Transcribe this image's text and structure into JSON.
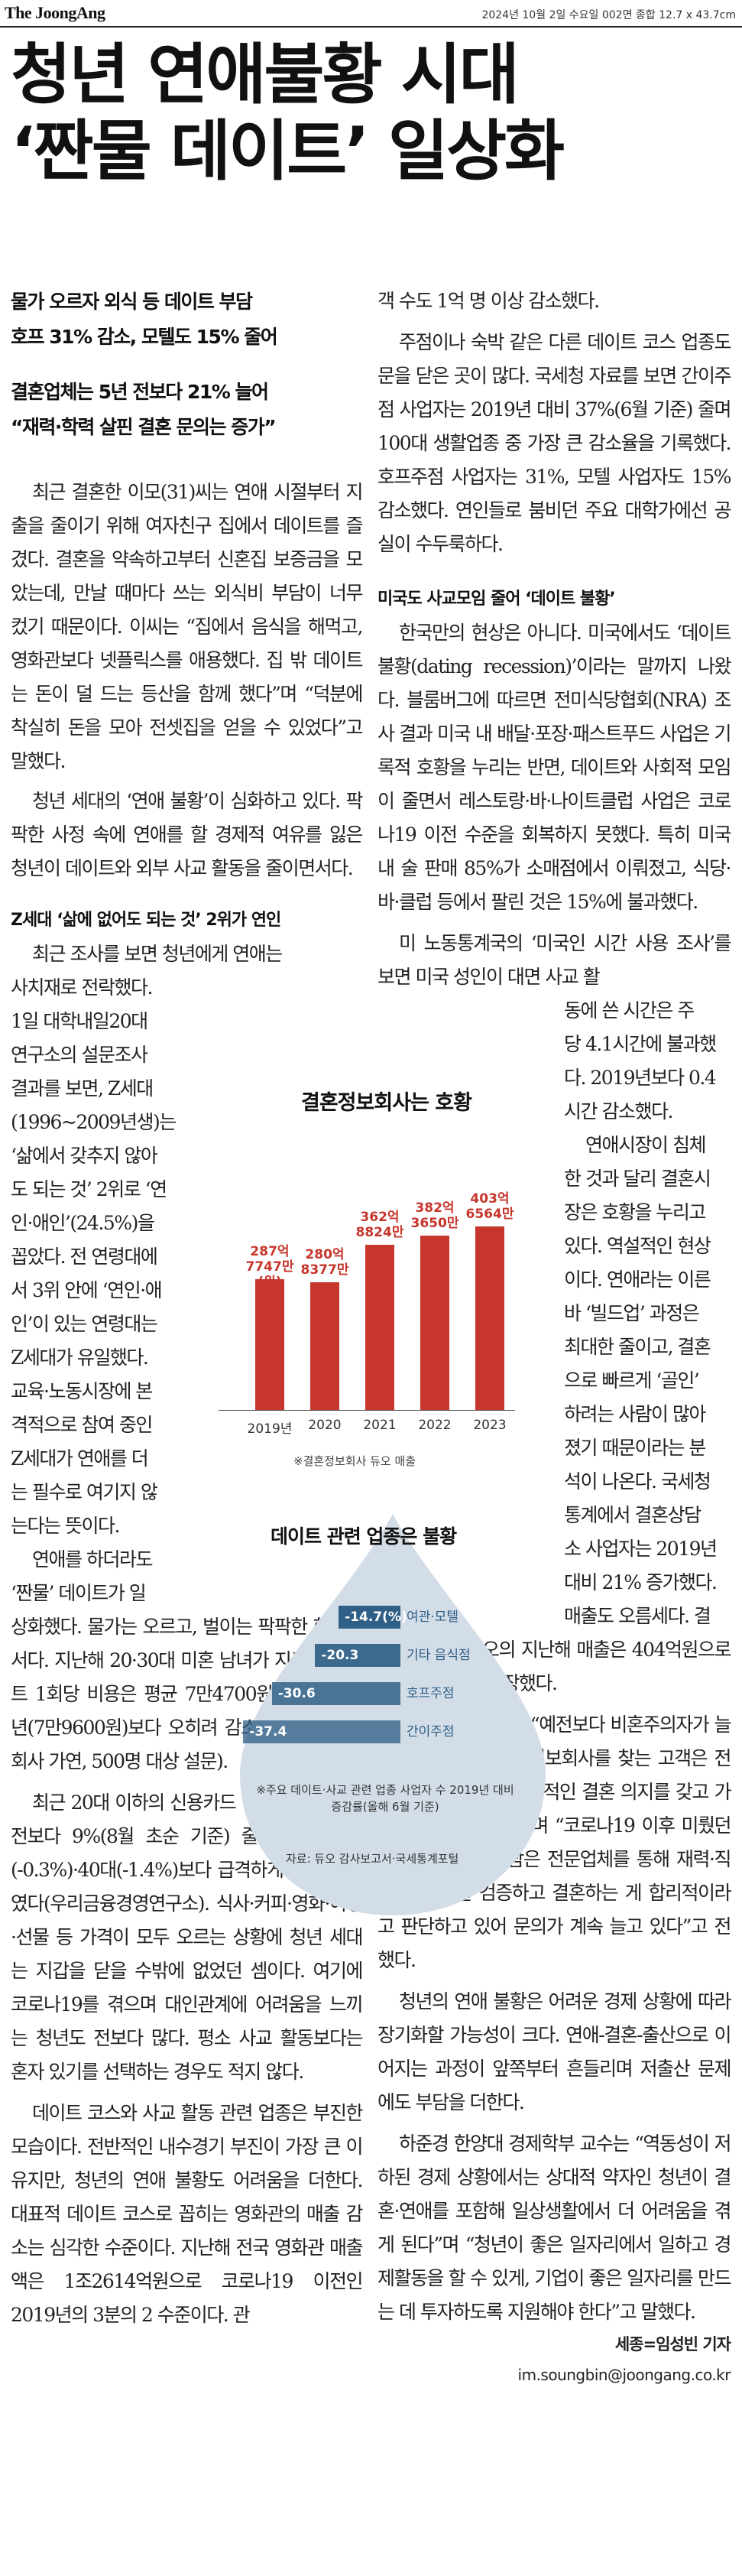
{
  "masthead": {
    "logo": "The JoongAng",
    "dateline": "2024년 10월 2일 수요일 002면 종합 12.7 x 43.7cm"
  },
  "headline": {
    "line1": "청년 연애불황 시대",
    "line2": "‘짠물 데이트’ 일상화"
  },
  "subheads": {
    "line1": "물가 오르자 외식 등 데이트 부담",
    "line2": "호프 31% 감소, 모텔도 15% 줄어",
    "line3": "결혼업체는 5년 전보다 21% 늘어",
    "line4": "“재력·학력 살핀 결혼 문의는 증가”"
  },
  "left_paragraphs": [
    "최근 결혼한 이모(31)씨는 연애 시절부터 지출을 줄이기 위해 여자친구 집에서 데이트를 즐겼다. 결혼을 약속하고부터 신혼집 보증금을 모았는데, 만날 때마다 쓰는 외식비 부담이 너무 컸기 때문이다. 이씨는 “집에서 음식을 해먹고, 영화관보다 넷플릭스를 애용했다. 집 밖 데이트는 돈이 덜 드는 등산을 함께 했다”며 “덕분에 착실히 돈을 모아 전셋집을 얻을 수 있었다”고 말했다.",
    "청년 세대의 ‘연애 불황’이 심화하고 있다. 팍팍한 사정 속에 연애를 할 경제적 여유를 잃은 청년이 데이트와 외부 사교 활동을 줄이면서다."
  ],
  "left_section_head": "Z세대 ‘삶에 없어도 되는 것’ 2위가 연인",
  "left_narrow_first_line": "최근 조사를 보면 청년에게 연애는",
  "left_narrow_lines": [
    "사치재로 전락했다.",
    "1일 대학내일20대",
    "연구소의 설문조사",
    "결과를 보면, Z세대",
    "(1996~2009년생)는",
    "‘삶에서 갖추지 않아",
    "도 되는 것’ 2위로 ‘연",
    "인·애인’(24.5%)을",
    "꼽았다. 전 연령대에",
    "서 3위 안에 ‘연인·애",
    "인’이 있는 연령대는",
    "Z세대가 유일했다.",
    "교육·노동시장에 본",
    "격적으로 참여 중인",
    "Z세대가 연애를 더",
    "는 필수로 여기지 않",
    "는다는 뜻이다.",
    "연애를 하더라도",
    "‘짠물’ 데이트가 일"
  ],
  "left_paragraphs_2": [
    "상화했다. 물가는 오르고, 벌이는 팍팍한 현실에서다. 지난해 20·30대 미혼 남녀가 지출한 데이트 1회당 비용은 평균 7만4700원으로, 2022년(7만9600원)보다 오히려 감소했다(결혼정보회사 가연, 500명 대상 설문).",
    "최근 20대 이하의 신용카드 이용 금액은 1년 전보다 9%(8월 초순 기준) 줄었으며, 30대(-0.3%)·40대(-1.4%)보다 급격하게 지출을 줄였다(우리금융경영연구소). 식사·커피·영화·여행·선물 등 가격이 모두 오르는 상황에 청년 세대는 지갑을 닫을 수밖에 없었던 셈이다. 여기에 코로나19를 겪으며 대인관계에 어려움을 느끼는 청년도 전보다 많다. 평소 사교 활동보다는 혼자 있기를 선택하는 경우도 적지 않다.",
    "데이트 코스와 사교 활동 관련 업종은 부진한 모습이다. 전반적인 내수경기 부진이 가장 큰 이유지만, 청년의 연애 불황도 어려움을 더한다. 대표적 데이트 코스로 꼽히는 영화관의 매출 감소는 심각한 수준이다. 지난해 전국 영화관 매출액은 1조2614억원으로 코로나19 이전인 2019년의 3분의 2 수준이다. 관"
  ],
  "right_paragraphs_1": [
    "객 수도 1억 명 이상 감소했다.",
    "주점이나 숙박 같은 다른 데이트 코스 업종도 문을 닫은 곳이 많다. 국세청 자료를 보면 간이주점 사업자는 2019년 대비 37%(6월 기준) 줄며 100대 생활업종 중 가장 큰 감소율을 기록했다. 호프주점 사업자는 31%, 모텔 사업자도 15% 감소했다. 연인들로 붐비던 주요 대학가에선 공실이 수두룩하다."
  ],
  "right_section_head": "미국도 사교모임 줄어 ‘데이트 불황’",
  "right_paragraphs_2": [
    "한국만의 현상은 아니다. 미국에서도 ‘데이트 불황(dating recession)’이라는 말까지 나왔다. 블룸버그에 따르면 전미식당협회(NRA) 조사 결과 미국 내 배달·포장·패스트푸드 사업은 기록적 호황을 누리는 반면, 데이트와 사회적 모임이 줄면서 레스토랑·바·나이트클럽 사업은 코로나19 이전 수준을 회복하지 못했다. 특히 미국 내 술 판매 85%가 소매점에서 이뤄졌고, 식당·바·클럽 등에서 팔린 것은 15%에 불과했다.",
    "미 노동통계국의 ‘미국인 시간 사용 조사’를 보면 미국 성인이 대면 사교 활"
  ],
  "right_narrow_lines": [
    "동에 쓴 시간은 주",
    "당 4.1시간에 불과했",
    "다. 2019년보다 0.4",
    "시간 감소했다.",
    "연애시장이 침체",
    "한 것과 달리 결혼시",
    "장은 호황을 누리고",
    "있다. 역설적인 현상",
    "이다. 연애라는 이른",
    "바 ‘빌드업’ 과정은",
    "최대한 줄이고, 결혼",
    "으로 빠르게 ‘골인’",
    "하려는 사람이 많아",
    "졌기 때문이라는 분",
    "석이 나온다. 국세청",
    "통계에서 결혼상담",
    "소 사업자는 2019년",
    "대비 21% 증가했다.",
    "매출도 오름세다. 결"
  ],
  "right_paragraphs_3": [
    "혼정보회사 듀오의 지난해 매출은 404억원으로 전년 대비 6% 성장했다.",
    "한 업계 관계자는 “예전보다 비혼주의자가 늘었다지만, 최근 결혼정보회사를 찾는 고객은 전보다 더 확실하고 적극적인 결혼 의지를 갖고 가입하는 경우가 많다”며 “코로나19 이후 미뤘던 결혼에 나서는 사람은 전문업체를 통해 재력·직업·학력 등을 검증하고 결혼하는 게 합리적이라고 판단하고 있어 문의가 계속 늘고 있다”고 전했다.",
    "청년의 연애 불황은 어려운 경제 상황에 따라 장기화할 가능성이 크다. 연애-결혼-출산으로 이어지는 과정이 앞쪽부터 흔들리며 저출산 문제에도 부담을 더한다.",
    "하준경 한양대 경제학부 교수는 “역동성이 저하된 경제 상황에서는 상대적 약자인 청년이 결혼·연애를 포함해 일상생활에서 더 어려움을 겪게 된다”며 “청년이 좋은 일자리에서 일하고 경제활동을 할 수 있게, 기업이 좋은 일자리를 만드는 데 투자하도록 지원해야 한다”고 말했다."
  ],
  "byline": "세종=임성빈 기자",
  "email": "im.soungbin@joongang.co.kr",
  "chart_data": [
    {
      "type": "bar",
      "title": "결혼정보회사는 호황",
      "categories": [
        "2019년",
        "2020",
        "2021",
        "2022",
        "2023"
      ],
      "values": [
        287.77,
        280.84,
        362.88,
        382.37,
        403.66
      ],
      "value_labels": [
        "287억 7747만(원)",
        "280억 8377만",
        "362억 8824만",
        "382억 3650만",
        "403억 6564만"
      ],
      "note": "※결혼정보회사 듀오 매출",
      "color": "#c6362c"
    },
    {
      "type": "bar",
      "orientation": "horizontal",
      "title": "데이트 관련 업종은 불황",
      "categories": [
        "여관·모텔",
        "기타 음식점",
        "호프주점",
        "간이주점"
      ],
      "values": [
        -14.7,
        -20.3,
        -30.6,
        -37.4
      ],
      "value_labels": [
        "-14.7(%)",
        "-20.3",
        "-30.6",
        "-37.4"
      ],
      "note": "※주요 데이트·사교 관련 업종 사업자 수 2019년 대비 증감률(올해 6월 기준)",
      "source": "자료: 듀오 감사보고서·국세통계포털",
      "color": "#2f5f86"
    }
  ]
}
